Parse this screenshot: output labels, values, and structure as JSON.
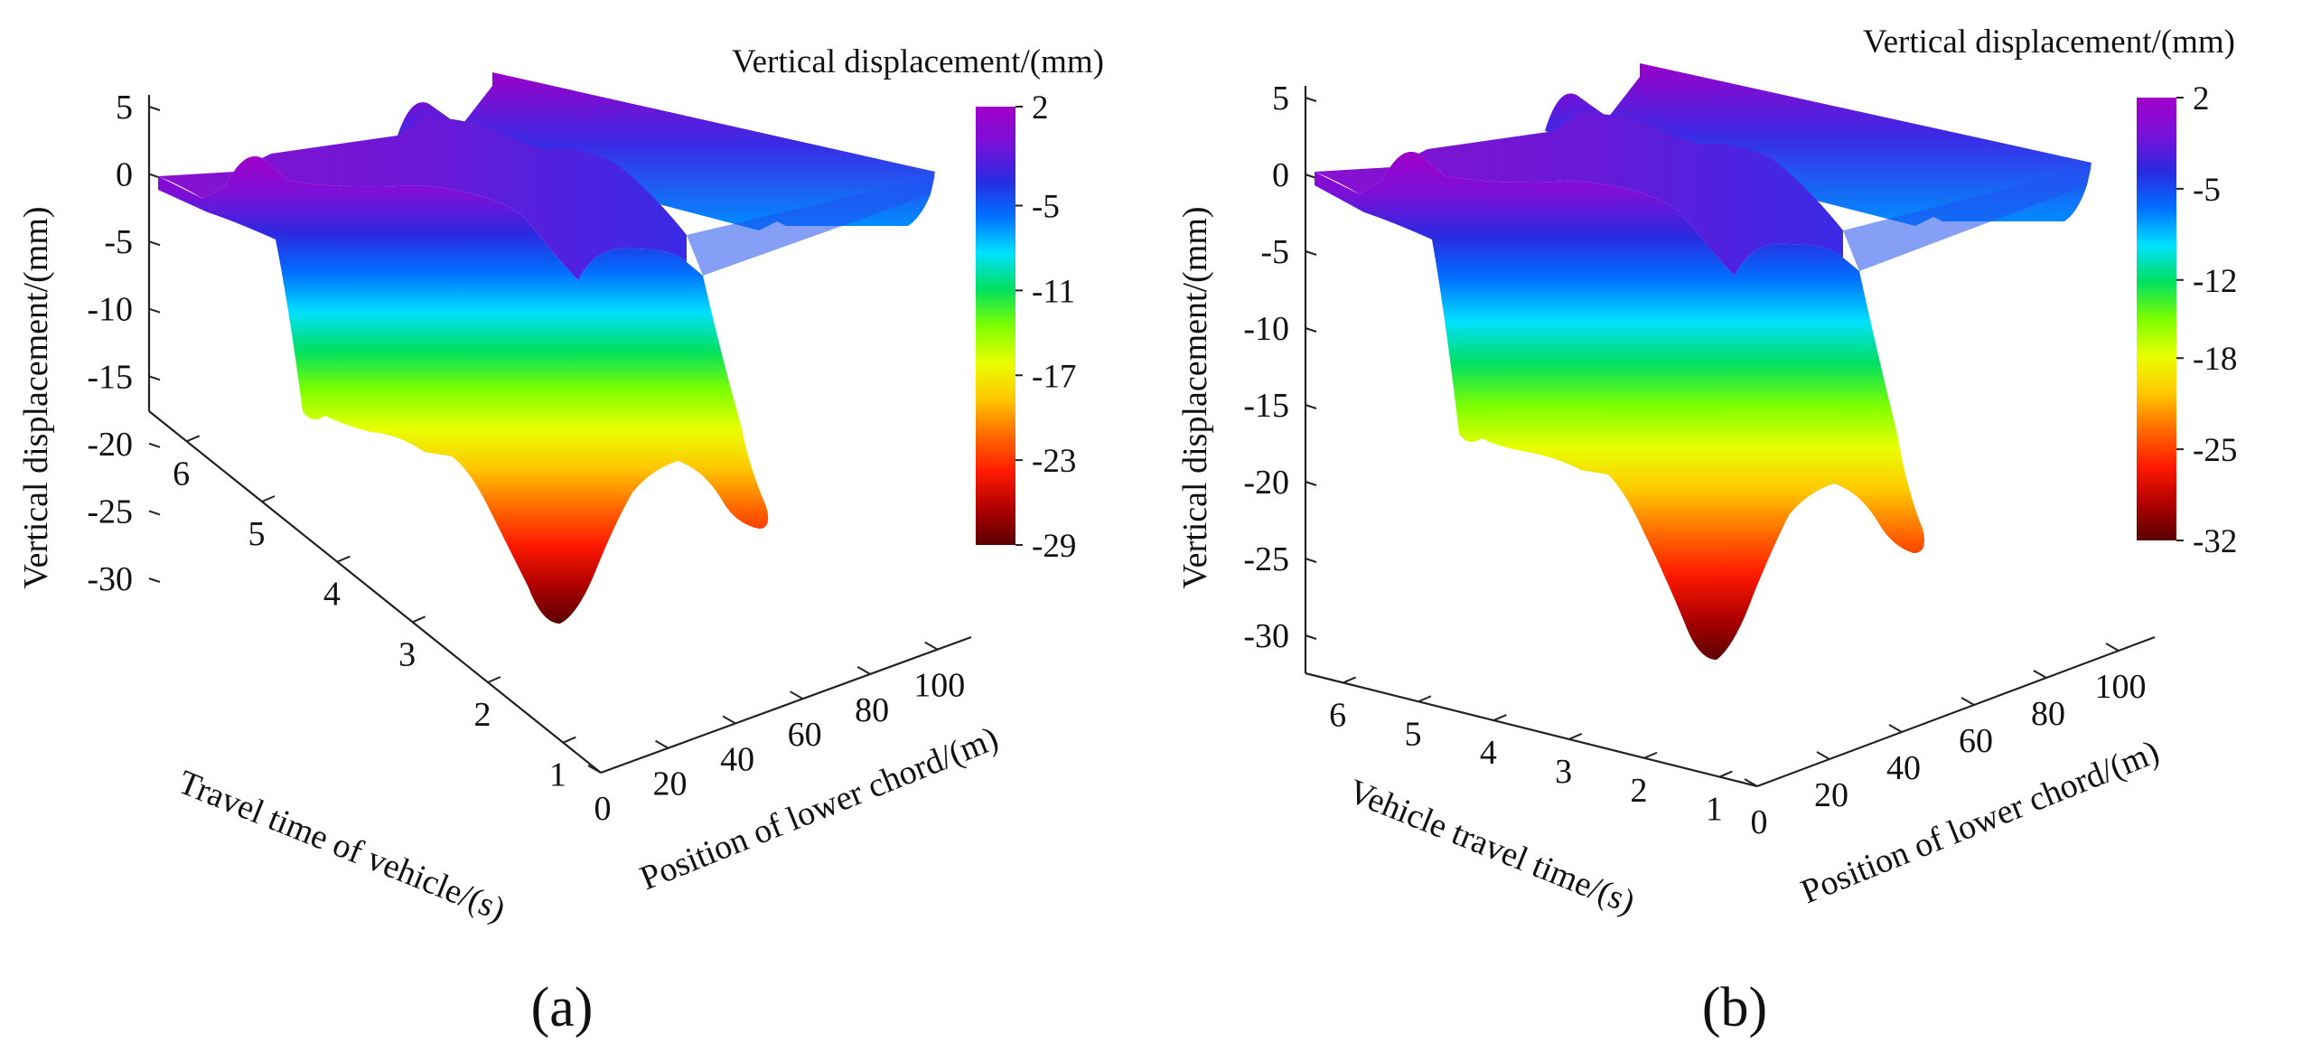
{
  "figure": {
    "description_labels": [
      "(a)",
      "(b)"
    ]
  },
  "colormap": {
    "name": "jet-like",
    "stops": [
      "#5a0000",
      "#b00000",
      "#ff1a00",
      "#ff6a00",
      "#ffc800",
      "#e8ff00",
      "#7dff00",
      "#00e060",
      "#00e0ff",
      "#0070ff",
      "#2a2ae0",
      "#7a10d8",
      "#a000c8"
    ]
  },
  "chart_data": [
    {
      "type": "surface3d",
      "panel_label": "(a)",
      "zlabel": "Vertical displacement/(mm)",
      "xlabel": "Position of lower chord/(m)",
      "ylabel": "Travel time of vehicle/(s)",
      "x_ticks": [
        "0",
        "20",
        "40",
        "60",
        "80",
        "100"
      ],
      "y_ticks": [
        "1",
        "2",
        "3",
        "4",
        "5",
        "6"
      ],
      "z_ticks": [
        "5",
        "0",
        "-5",
        "-10",
        "-15",
        "-20",
        "-25",
        "-30"
      ],
      "xlim": [
        0,
        110
      ],
      "ylim": [
        0.5,
        6.5
      ],
      "zlim": [
        -32,
        5
      ],
      "colorbar": {
        "title": "Vertical displacement/(mm)",
        "ticks": [
          "2",
          "-5",
          "-11",
          "-17",
          "-23",
          "-29"
        ],
        "range": [
          -29,
          2
        ]
      },
      "surface_profile": {
        "description": "Displacement along lower chord at peak, with near-zero supports at ends",
        "position_m": [
          0,
          5,
          10,
          15,
          20,
          25,
          30,
          35,
          40,
          45,
          50,
          55,
          60,
          65,
          70,
          75,
          80,
          85,
          90,
          95,
          100
        ],
        "min_displacement_mm": [
          -1,
          -2,
          -6,
          -10,
          -14,
          -16.5,
          -16,
          -16.5,
          -18,
          -22,
          -27,
          -29,
          -26,
          -21,
          -20,
          -21,
          -22.5,
          -20,
          -10,
          -3,
          0
        ]
      }
    },
    {
      "type": "surface3d",
      "panel_label": "(b)",
      "zlabel": "Vertical displacement/(mm)",
      "xlabel": "Position of lower chord/(m)",
      "ylabel": "Vehicle travel time/(s)",
      "x_ticks": [
        "0",
        "20",
        "40",
        "60",
        "80",
        "100"
      ],
      "y_ticks": [
        "1",
        "2",
        "3",
        "4",
        "5",
        "6"
      ],
      "z_ticks": [
        "5",
        "0",
        "-5",
        "-10",
        "-15",
        "-20",
        "-25",
        "-30"
      ],
      "xlim": [
        0,
        110
      ],
      "ylim": [
        0.5,
        6.5
      ],
      "zlim": [
        -32,
        5
      ],
      "colorbar": {
        "title": "Vertical displacement/(mm)",
        "ticks": [
          "2",
          "-5",
          "-12",
          "-18",
          "-25",
          "-32"
        ],
        "range": [
          -32,
          2
        ]
      },
      "surface_profile": {
        "description": "Displacement along lower chord at peak, with near-zero supports at ends",
        "position_m": [
          0,
          5,
          10,
          15,
          20,
          25,
          30,
          35,
          40,
          45,
          50,
          55,
          60,
          65,
          70,
          75,
          80,
          85,
          90,
          95,
          100
        ],
        "min_displacement_mm": [
          -1,
          -2,
          -6,
          -11,
          -15,
          -18,
          -17.5,
          -18,
          -20,
          -24,
          -29,
          -31.5,
          -28,
          -23,
          -21,
          -21.5,
          -24,
          -22,
          -11,
          -3,
          0
        ]
      }
    }
  ]
}
